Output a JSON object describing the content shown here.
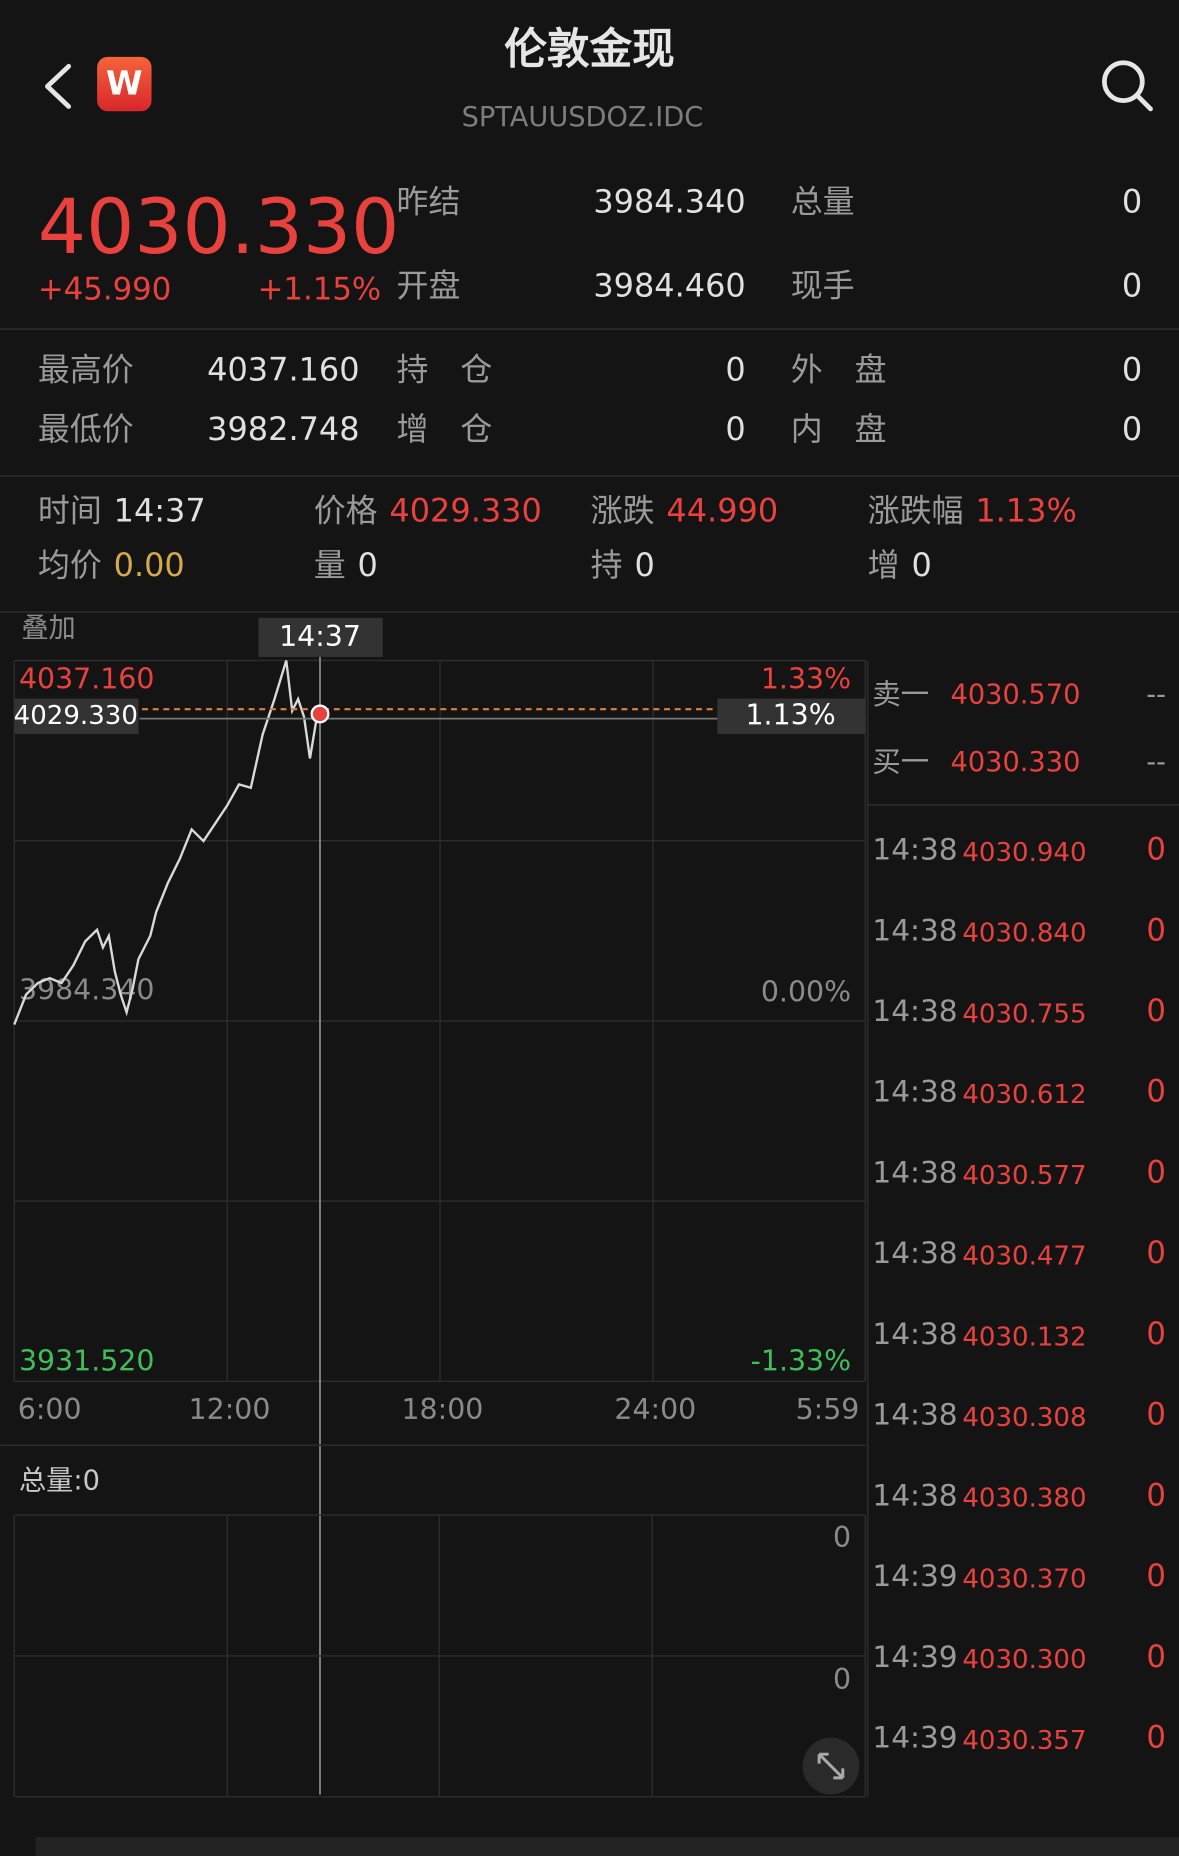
{
  "header": {
    "title": "伦敦金现",
    "subtitle": "SPTAUUSDOZ.IDC",
    "logo": "W"
  },
  "quote": {
    "price": "4030.330",
    "change": "+45.990",
    "change_pct": "+1.15%",
    "stats": [
      [
        "昨结",
        "3984.340",
        "总量",
        "0"
      ],
      [
        "开盘",
        "3984.460",
        "现手",
        "0"
      ]
    ]
  },
  "details": [
    [
      "最高价",
      "4037.160",
      "持　仓",
      "0",
      "外　盘",
      "0"
    ],
    [
      "最低价",
      "3982.748",
      "增　仓",
      "0",
      "内　盘",
      "0"
    ]
  ],
  "info": [
    [
      [
        "时间",
        "14:37"
      ],
      [
        "价格",
        "4029.330"
      ],
      [
        "涨跌",
        "44.990"
      ],
      [
        "涨跌幅",
        "1.13%"
      ]
    ],
    [
      [
        "均价",
        "0.00"
      ],
      [
        "量",
        "0"
      ],
      [
        "持",
        "0"
      ],
      [
        "增",
        "0"
      ]
    ]
  ],
  "overlay_label": "叠加",
  "chart_data": {
    "type": "line",
    "x": [
      "6:00",
      "6:20",
      "6:40",
      "7:00",
      "7:20",
      "7:40",
      "8:00",
      "8:20",
      "8:30",
      "8:40",
      "8:50",
      "9:00",
      "9:10",
      "9:20",
      "9:30",
      "9:40",
      "9:50",
      "10:00",
      "10:20",
      "10:40",
      "11:00",
      "11:20",
      "11:40",
      "12:00",
      "12:20",
      "12:40",
      "13:00",
      "13:20",
      "13:40",
      "13:50",
      "14:00",
      "14:10",
      "14:20",
      "14:30",
      "14:37"
    ],
    "values": [
      3983.8,
      3988.2,
      3989.9,
      3990.6,
      3989.9,
      3992.5,
      3996.0,
      3997.7,
      3995.1,
      3996.8,
      3991.6,
      3988.2,
      3985.6,
      3989.0,
      3993.4,
      3995.1,
      3996.8,
      4000.3,
      4004.6,
      4008.1,
      4012.4,
      4010.7,
      4013.3,
      4015.9,
      4019.0,
      4018.5,
      4026.3,
      4031.5,
      4037.16,
      4029.8,
      4031.5,
      4028.9,
      4022.8,
      4028.0,
      4029.33
    ],
    "color": "#d9d9d9",
    "xlim": [
      "6:00",
      "5:59"
    ],
    "xticks": [
      "6:00",
      "12:00",
      "18:00",
      "24:00",
      "5:59"
    ],
    "ylim": [
      3931.52,
      4037.16
    ],
    "yticks": [
      {
        "value": 4037.16,
        "label": "4037.160"
      },
      {
        "value": 3984.34,
        "label": "3984.340"
      },
      {
        "value": 3931.52,
        "label": "3931.520"
      }
    ],
    "y2lim": [
      -1.33,
      1.33
    ],
    "y2ticks": [
      {
        "value": 1.33,
        "label": "1.33%"
      },
      {
        "value": 0,
        "label": "0.00%"
      },
      {
        "value": -1.33,
        "label": "-1.33%"
      }
    ],
    "cursor_x": "14:37",
    "cursor_value": {
      "value": 4029.33,
      "label": "4029.330"
    },
    "cursor_pct": {
      "value": 1.13,
      "label": "1.13%"
    }
  },
  "volume": {
    "label": "总量:0",
    "ticks": [
      "0",
      "0"
    ]
  },
  "order_book": [
    [
      "卖一",
      "4030.570",
      "--"
    ],
    [
      "买一",
      "4030.330",
      "--"
    ]
  ],
  "trades": [
    [
      "14:38",
      "4030.940",
      "0"
    ],
    [
      "14:38",
      "4030.840",
      "0"
    ],
    [
      "14:38",
      "4030.755",
      "0"
    ],
    [
      "14:38",
      "4030.612",
      "0"
    ],
    [
      "14:38",
      "4030.577",
      "0"
    ],
    [
      "14:38",
      "4030.477",
      "0"
    ],
    [
      "14:38",
      "4030.132",
      "0"
    ],
    [
      "14:38",
      "4030.308",
      "0"
    ],
    [
      "14:38",
      "4030.380",
      "0"
    ],
    [
      "14:39",
      "4030.370",
      "0"
    ],
    [
      "14:39",
      "4030.300",
      "0"
    ],
    [
      "14:39",
      "4030.357",
      "0"
    ]
  ]
}
